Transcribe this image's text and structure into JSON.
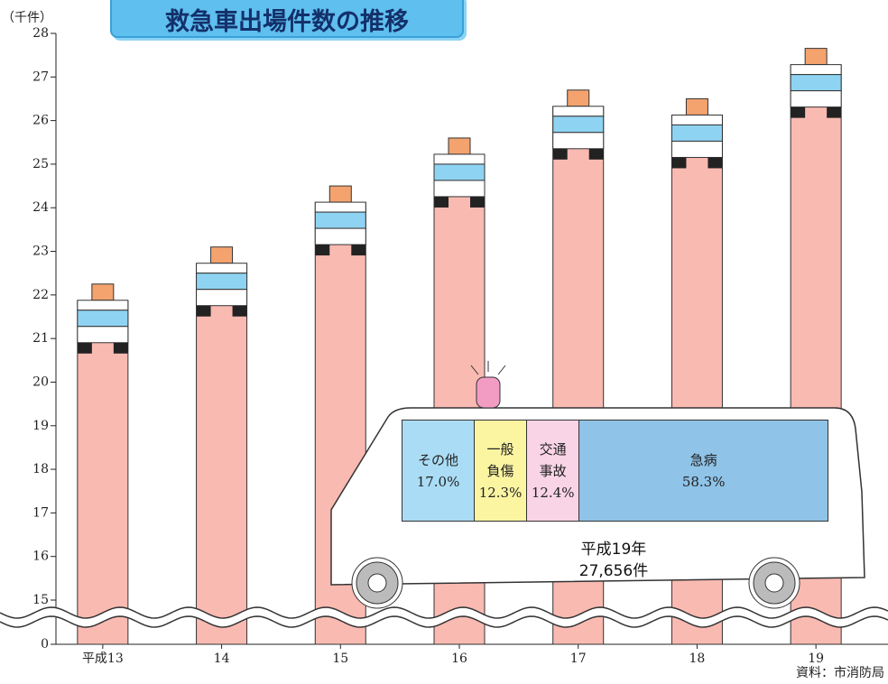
{
  "chart_data": {
    "type": "bar",
    "title": "救急車出場件数の推移",
    "unit_label": "（千件）",
    "categories": [
      "平成13",
      "14",
      "15",
      "16",
      "17",
      "18",
      "19"
    ],
    "values": [
      22.25,
      23.1,
      24.5,
      25.6,
      26.7,
      26.5,
      27.656
    ],
    "color": "#f9bab2",
    "ylim": [
      0,
      28
    ],
    "yticks": [
      0,
      15,
      16,
      17,
      18,
      19,
      20,
      21,
      22,
      23,
      24,
      25,
      26,
      27,
      28
    ],
    "axis_break": [
      0,
      15
    ],
    "source": "資料：市消防局",
    "inset": {
      "type": "stacked-bar",
      "title": "平成19年",
      "subtitle": "27,656件",
      "categories": [
        "その他",
        "一般負傷",
        "交通事故",
        "急病"
      ],
      "values": [
        17.0,
        12.3,
        12.4,
        58.3
      ],
      "value_labels": [
        "17.0%",
        "12.3%",
        "12.4%",
        "58.3%"
      ],
      "colors": [
        "#aadcf5",
        "#fbf5a2",
        "#f9d4e6",
        "#8fc3e8"
      ]
    }
  }
}
